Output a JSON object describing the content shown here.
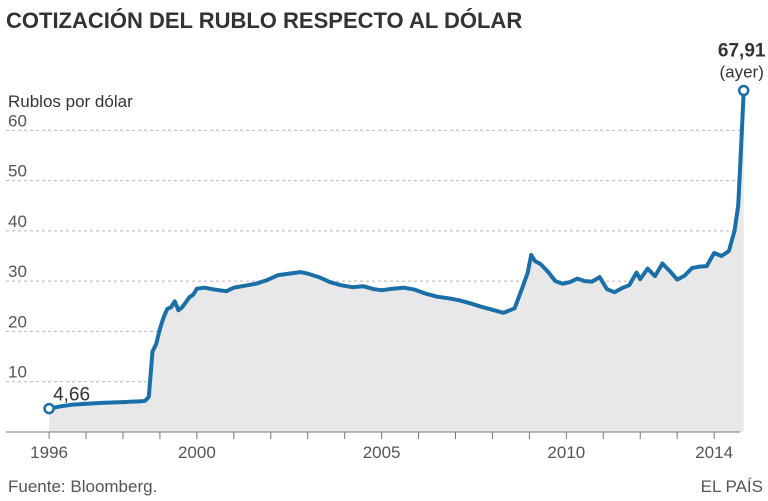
{
  "chart_data": {
    "type": "area",
    "title": "COTIZACIÓN DEL RUBLO RESPECTO AL DÓLAR",
    "ylabel": "Rublos por dólar",
    "xlabel": "",
    "xlim": [
      1995.7,
      2014.7
    ],
    "ylim": [
      0,
      70
    ],
    "yticks": [
      "10",
      "20",
      "30",
      "40",
      "50",
      "60"
    ],
    "xticks": [
      "1996",
      "2000",
      "2005",
      "2010",
      "2014"
    ],
    "grid": true,
    "series": [
      {
        "x": [
          1996.0,
          1996.3,
          1996.6,
          1997.0,
          1997.5,
          1998.0,
          1998.5,
          1998.6,
          1998.7,
          1998.8,
          1998.9,
          1999.0,
          1999.1,
          1999.2,
          1999.3,
          1999.4,
          1999.5,
          1999.6,
          1999.7,
          1999.8,
          1999.9,
          2000.0,
          2000.2,
          2000.5,
          2000.8,
          2001.0,
          2001.3,
          2001.6,
          2001.9,
          2002.2,
          2002.5,
          2002.8,
          2003.0,
          2003.3,
          2003.6,
          2003.9,
          2004.2,
          2004.5,
          2004.8,
          2005.0,
          2005.3,
          2005.6,
          2005.9,
          2006.2,
          2006.5,
          2006.8,
          2007.1,
          2007.4,
          2007.7,
          2008.0,
          2008.3,
          2008.6,
          2008.8,
          2008.95,
          2009.05,
          2009.15,
          2009.3,
          2009.5,
          2009.7,
          2009.9,
          2010.1,
          2010.3,
          2010.5,
          2010.7,
          2010.9,
          2011.1,
          2011.3,
          2011.5,
          2011.7,
          2011.9,
          2012.0,
          2012.2,
          2012.4,
          2012.6,
          2012.8,
          2013.0,
          2013.2,
          2013.4,
          2013.6,
          2013.8,
          2014.0,
          2014.2,
          2014.4,
          2014.55,
          2014.65,
          2014.72,
          2014.77,
          2014.8
        ],
        "y": [
          4.66,
          5.1,
          5.4,
          5.6,
          5.8,
          5.95,
          6.1,
          6.2,
          7.0,
          16.0,
          17.5,
          20.5,
          22.8,
          24.5,
          24.8,
          26.0,
          24.2,
          24.8,
          25.8,
          26.8,
          27.3,
          28.5,
          28.7,
          28.3,
          28.0,
          28.7,
          29.1,
          29.5,
          30.2,
          31.2,
          31.5,
          31.8,
          31.5,
          30.8,
          29.8,
          29.2,
          28.8,
          29.0,
          28.4,
          28.2,
          28.5,
          28.7,
          28.3,
          27.5,
          26.9,
          26.6,
          26.2,
          25.6,
          24.9,
          24.3,
          23.7,
          24.6,
          28.5,
          31.6,
          35.2,
          34.0,
          33.4,
          31.9,
          30.0,
          29.5,
          29.8,
          30.5,
          30.0,
          29.9,
          30.8,
          28.4,
          27.8,
          28.6,
          29.2,
          31.7,
          30.4,
          32.5,
          31.0,
          33.5,
          32.0,
          30.3,
          31.1,
          32.6,
          32.9,
          33.0,
          35.6,
          35.0,
          36.0,
          40.0,
          45.0,
          55.0,
          63.0,
          67.91
        ]
      }
    ],
    "annotations": {
      "start_value": "4,66",
      "end_value": "67,91",
      "end_note": "(ayer)"
    },
    "colors": {
      "line": "#1b6fa8",
      "area": "#e8e8e8",
      "grid": "#b4b4b4",
      "axis": "#777777"
    }
  },
  "footer": {
    "source": "Fuente: Bloomberg.",
    "brand": "EL PAÍS"
  }
}
